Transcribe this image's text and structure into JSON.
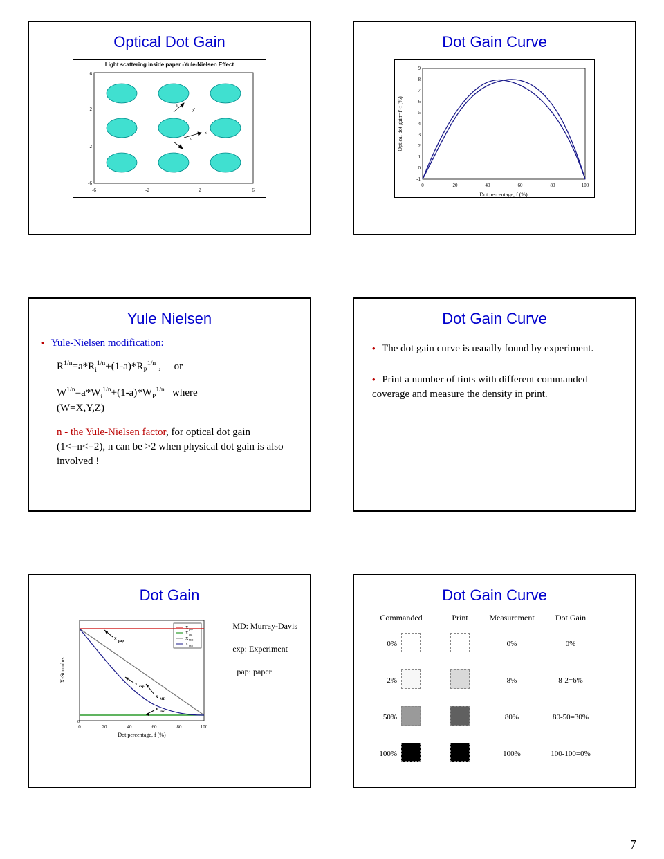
{
  "page_number": "7",
  "slide1": {
    "title": "Optical Dot Gain",
    "chart": {
      "subtitle": "Light scattering inside paper -Yule-Nielsen Effect",
      "xlim": [
        -6,
        6
      ],
      "ylim": [
        -6,
        6
      ],
      "xticks": [
        -6,
        -2,
        2,
        6
      ],
      "yticks": [
        -6,
        -2,
        2,
        6
      ],
      "dot_color": "#40e0d0",
      "dot_positions_x": [
        -4,
        0,
        4
      ],
      "dot_positions_y": [
        -4,
        0,
        4
      ],
      "dot_rx": 1.4,
      "dot_ry": 0.9
    }
  },
  "slide2": {
    "title": "Dot Gain Curve",
    "chart": {
      "type": "line",
      "xlabel": "Dot percentage, f (%)",
      "ylabel": "Optical dot gain=f'-f (%)",
      "xlim": [
        0,
        100
      ],
      "ylim": [
        -1,
        9
      ],
      "xticks": [
        0,
        20,
        40,
        60,
        80,
        100
      ],
      "yticks": [
        -1,
        0,
        1,
        2,
        3,
        4,
        5,
        6,
        7,
        8,
        9
      ],
      "line_color": "#1a1a8a",
      "points": [
        [
          0,
          0
        ],
        [
          5,
          2.5
        ],
        [
          10,
          4.2
        ],
        [
          15,
          5.6
        ],
        [
          20,
          6.7
        ],
        [
          25,
          7.5
        ],
        [
          30,
          8.1
        ],
        [
          35,
          8.5
        ],
        [
          40,
          8.75
        ],
        [
          45,
          8.85
        ],
        [
          50,
          8.8
        ],
        [
          55,
          8.55
        ],
        [
          60,
          8.1
        ],
        [
          65,
          7.45
        ],
        [
          70,
          6.6
        ],
        [
          75,
          5.55
        ],
        [
          80,
          4.35
        ],
        [
          85,
          3.05
        ],
        [
          90,
          1.75
        ],
        [
          95,
          0.7
        ],
        [
          100,
          0
        ]
      ]
    }
  },
  "slide3": {
    "title": "Yule Nielsen",
    "bullet_label": "Yule-Nielsen modification:",
    "eq1_parts": [
      "R",
      "1/n",
      "=a*R",
      "i",
      "1/n",
      "+(1-a)*R",
      "P",
      "1/n",
      " ,      or"
    ],
    "eq2_parts": [
      "W",
      "1/n",
      "=a*W",
      "i",
      "1/n",
      "+(1-a)*W",
      "P",
      "1/n",
      "   where"
    ],
    "eq2_sub": "(W=X,Y,Z)",
    "note_prefix": "n - the Yule-Nielsen factor",
    "note_suffix": ", for optical dot gain (1<=n<=2), n can be >2 when physical dot gain is also involved !"
  },
  "slide4": {
    "title": "Dot Gain Curve",
    "b1": "The dot gain curve is usually found by experiment.",
    "b2": "Print a number of tints with different commanded coverage and measure the density in print."
  },
  "slide5": {
    "title": "Dot Gain",
    "chart": {
      "type": "line",
      "xlabel": "Dot percentage, f (%)",
      "ylabel": "X-Stimulus",
      "xlim": [
        0,
        100
      ],
      "ylim": [
        0,
        1
      ],
      "xticks": [
        0,
        20,
        40,
        60,
        80,
        100
      ],
      "legend": [
        "X_pap",
        "X_ink",
        "X_MD",
        "X_exp"
      ],
      "colors": {
        "pap": "#c00",
        "ink": "#080",
        "MD": "#777",
        "exp": "#1a1a8a"
      },
      "series": {
        "pap": [
          [
            0,
            0.92
          ],
          [
            100,
            0.92
          ]
        ],
        "ink": [
          [
            0,
            0.06
          ],
          [
            100,
            0.06
          ]
        ],
        "MD": [
          [
            0,
            0.92
          ],
          [
            20,
            0.74
          ],
          [
            40,
            0.57
          ],
          [
            60,
            0.4
          ],
          [
            80,
            0.23
          ],
          [
            100,
            0.06
          ]
        ],
        "exp": [
          [
            0,
            0.92
          ],
          [
            10,
            0.7
          ],
          [
            20,
            0.55
          ],
          [
            30,
            0.43
          ],
          [
            40,
            0.33
          ],
          [
            50,
            0.25
          ],
          [
            60,
            0.19
          ],
          [
            70,
            0.14
          ],
          [
            80,
            0.1
          ],
          [
            90,
            0.08
          ],
          [
            100,
            0.06
          ]
        ]
      },
      "labels_on_chart": [
        "x_pap",
        "x_exp",
        "x_MD",
        "x_ink"
      ]
    },
    "legend_text": [
      {
        "key": "MD:",
        "val": "Murray-Davis"
      },
      {
        "key": "exp:",
        "val": "Experiment"
      },
      {
        "key": "pap:",
        "val": "paper"
      }
    ]
  },
  "slide6": {
    "title": "Dot Gain Curve",
    "headers": [
      "Commanded",
      "Print",
      "Measurement",
      "Dot Gain"
    ],
    "rows": [
      {
        "cmd": "0%",
        "cmd_color": "#ffffff",
        "print_color": "#ffffff",
        "meas": "0%",
        "gain": "0%"
      },
      {
        "cmd": "2%",
        "cmd_color": "#f7f7f7",
        "print_color": "#d9d9d9",
        "meas": "8%",
        "gain": "8-2=6%"
      },
      {
        "cmd": "50%",
        "cmd_color": "#9a9a9a",
        "print_color": "#606060",
        "meas": "80%",
        "gain": "80-50=30%"
      },
      {
        "cmd": "100%",
        "cmd_color": "#000000",
        "print_color": "#000000",
        "meas": "100%",
        "gain": "100-100=0%"
      }
    ]
  }
}
